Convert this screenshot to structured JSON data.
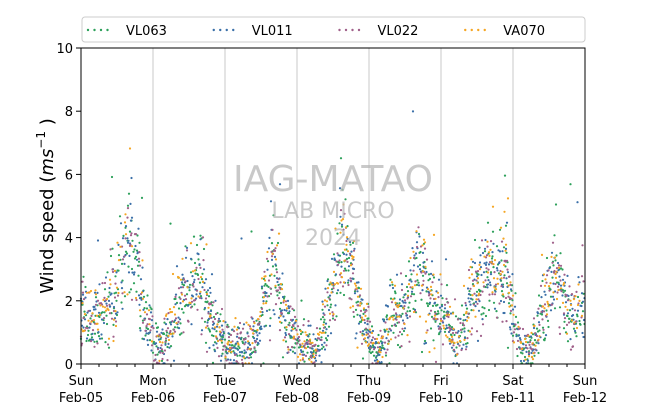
{
  "chart_data": {
    "type": "scatter",
    "title": "",
    "ylabel": "Wind speed (ms⁻¹)",
    "ylabel_parts": {
      "main": "Wind speed (",
      "unit": "ms",
      "exp": "−1",
      "close": " )"
    },
    "xlabel": "",
    "ylim": [
      0,
      10
    ],
    "yticks": [
      0,
      2,
      4,
      6,
      8,
      10
    ],
    "xlim": [
      "2023-02-05 00:00",
      "2023-02-12 00:00"
    ],
    "xticks": [
      {
        "day": "Sun",
        "date": "Feb-05"
      },
      {
        "day": "Mon",
        "date": "Feb-06"
      },
      {
        "day": "Tue",
        "date": "Feb-07"
      },
      {
        "day": "Wed",
        "date": "Feb-08"
      },
      {
        "day": "Thu",
        "date": "Feb-09"
      },
      {
        "day": "Fri",
        "date": "Feb-10"
      },
      {
        "day": "Sat",
        "date": "Feb-11"
      },
      {
        "day": "Sun",
        "date": "Feb-12"
      }
    ],
    "grid": "vertical-at-midnight",
    "legend_position": "top",
    "series": [
      {
        "name": "VL063",
        "color": "#2ca05a"
      },
      {
        "name": "VL011",
        "color": "#3a6fa8"
      },
      {
        "name": "VL022",
        "color": "#a0608a"
      },
      {
        "name": "VA070",
        "color": "#f5a623"
      }
    ],
    "daily_profile_hourly_mean": [
      [
        1.6,
        1.5,
        1.4,
        1.3,
        1.3,
        1.4,
        1.5,
        1.6,
        1.8,
        2.0,
        2.1,
        2.2,
        2.4,
        2.8,
        3.2,
        3.6,
        3.9,
        3.7,
        3.3,
        2.8,
        2.3,
        1.8,
        1.4,
        1.1
      ],
      [
        0.9,
        0.7,
        0.6,
        0.6,
        0.8,
        1.0,
        1.3,
        1.6,
        1.8,
        2.0,
        2.1,
        2.1,
        2.0,
        2.2,
        2.6,
        2.8,
        2.7,
        2.3,
        1.9,
        1.6,
        1.3,
        1.1,
        0.9,
        0.8
      ],
      [
        0.8,
        0.6,
        0.5,
        0.5,
        0.5,
        0.6,
        0.6,
        0.6,
        0.7,
        0.8,
        0.9,
        1.2,
        1.6,
        2.0,
        2.4,
        2.8,
        3.0,
        2.8,
        2.2,
        1.7,
        1.3,
        1.1,
        1.0,
        0.9
      ],
      [
        0.8,
        0.7,
        0.7,
        0.6,
        0.6,
        0.5,
        0.6,
        0.7,
        0.9,
        1.1,
        1.5,
        2.0,
        2.5,
        3.0,
        3.4,
        3.7,
        3.6,
        3.3,
        3.0,
        2.6,
        2.2,
        1.8,
        1.4,
        1.1
      ],
      [
        0.8,
        0.6,
        0.4,
        0.3,
        0.5,
        0.8,
        1.1,
        1.4,
        1.6,
        1.7,
        1.6,
        1.5,
        1.6,
        1.9,
        2.5,
        3.0,
        3.3,
        3.1,
        2.8,
        2.4,
        2.0,
        1.8,
        1.7,
        1.6
      ],
      [
        1.5,
        1.4,
        1.2,
        1.0,
        0.9,
        0.8,
        0.9,
        1.0,
        1.2,
        1.6,
        2.0,
        2.3,
        2.5,
        2.7,
        2.8,
        2.9,
        3.0,
        2.9,
        2.8,
        2.6,
        2.8,
        2.9,
        2.6,
        2.0
      ],
      [
        1.4,
        1.0,
        0.7,
        0.5,
        0.4,
        0.4,
        0.5,
        0.7,
        1.0,
        1.3,
        1.6,
        1.9,
        2.2,
        2.5,
        2.7,
        2.6,
        2.3,
        1.9,
        1.6,
        1.4,
        1.4,
        1.5,
        1.7,
        1.9
      ]
    ]
  },
  "watermark": {
    "line1": "IAG-MATAO",
    "line2": "LAB MICRO",
    "line3": "2024"
  }
}
